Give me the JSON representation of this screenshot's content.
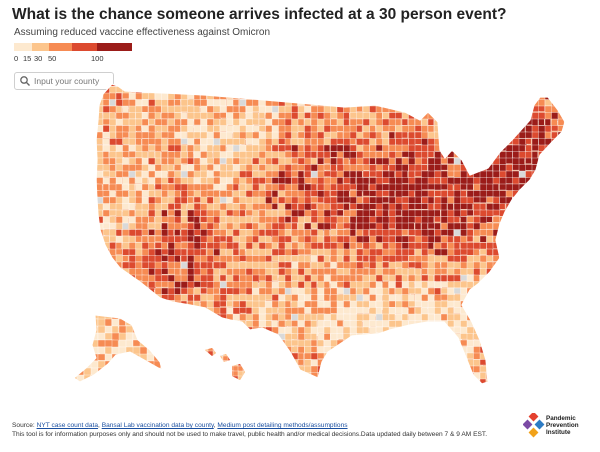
{
  "header": {
    "title": "What is the chance someone arrives infected at a 30 person event?",
    "subtitle": "Assuming reduced vaccine effectiveness against Omicron"
  },
  "legend": {
    "ticks": [
      "0",
      "15",
      "30",
      "50",
      "100"
    ],
    "colors": [
      "#fde9cf",
      "#fcc58c",
      "#f68b53",
      "#dc4a2f",
      "#9b1c19"
    ]
  },
  "search": {
    "placeholder": "Input your county",
    "icon": "search-icon"
  },
  "map": {
    "palette": {
      "very_low": "#fde9cf",
      "low": "#fcc58c",
      "medium": "#f68b53",
      "high": "#dc4a2f",
      "very_high": "#9b1c19",
      "no_data": "#d9d9d9",
      "border": "#ffffff"
    }
  },
  "footer": {
    "source_prefix": "Source: ",
    "link1": "NYT case count data",
    "sep1": ", ",
    "link2": "Bansal Lab vaccination data by county",
    "sep2": ", ",
    "link3": "Medium post detailing methods/assumptions",
    "disclaimer": "This tool is for information purposes only and should not be used to make travel, public health and/or medical decisions.Data updated daily between 7 & 9 AM EST."
  },
  "logo": {
    "line1": "Pandemic",
    "line2": "Prevention",
    "line3": "Institute",
    "colors": [
      "#e4412f",
      "#7b4aa5",
      "#2d7bc4",
      "#f1a21a"
    ]
  }
}
